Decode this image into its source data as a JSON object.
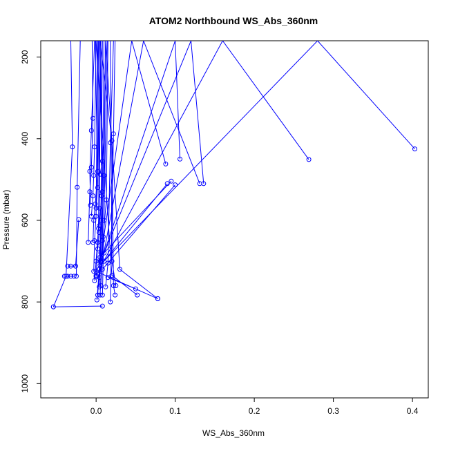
{
  "chart_data": {
    "type": "line",
    "title": "ATOM2 Northbound WS_Abs_360nm",
    "xlabel": "WS_Abs_360nm",
    "ylabel": "Pressure (mbar)",
    "xlim": [
      -0.07,
      0.42
    ],
    "ylim": [
      1035,
      160
    ],
    "y_reversed": true,
    "x_ticks": [
      0.0,
      0.1,
      0.2,
      0.3,
      0.4
    ],
    "x_tick_labels": [
      "0.0",
      "0.1",
      "0.2",
      "0.3",
      "0.4"
    ],
    "y_ticks": [
      200,
      400,
      600,
      800,
      1000
    ],
    "y_tick_labels": [
      "200",
      "400",
      "600",
      "800",
      "1000"
    ],
    "grid": false,
    "marker": "open-circle",
    "color": "#0000ff",
    "series": [
      {
        "x": [
          -0.054,
          0.008
        ],
        "y": [
          812,
          810
        ]
      },
      {
        "x": [
          -0.054,
          -0.038,
          -0.03,
          -0.032
        ],
        "y": [
          812,
          737,
          420,
          160
        ]
      },
      {
        "x": [
          -0.04,
          -0.036,
          -0.032,
          -0.028
        ],
        "y": [
          737,
          737,
          737,
          737
        ]
      },
      {
        "x": [
          -0.036,
          -0.032,
          -0.026
        ],
        "y": [
          712,
          712,
          712
        ]
      },
      {
        "x": [
          -0.025,
          -0.024,
          -0.02
        ],
        "y": [
          737,
          519,
          160
        ]
      },
      {
        "x": [
          -0.022,
          -0.026
        ],
        "y": [
          598,
          712
        ]
      },
      {
        "x": [
          -0.01,
          -0.008,
          -0.006,
          -0.004,
          -0.005
        ],
        "y": [
          654,
          530,
          470,
          350,
          160
        ]
      },
      {
        "x": [
          -0.007,
          -0.008,
          -0.006,
          -0.002
        ],
        "y": [
          563,
          480,
          380,
          160
        ]
      },
      {
        "x": [
          -0.006,
          -0.004,
          -0.003,
          -0.002,
          0.0
        ],
        "y": [
          590,
          540,
          490,
          420,
          160
        ]
      },
      {
        "x": [
          -0.004,
          -0.003,
          -0.001,
          0.002,
          0.003
        ],
        "y": [
          654,
          600,
          560,
          480,
          160
        ]
      },
      {
        "x": [
          -0.003,
          -0.002,
          0.0,
          0.002
        ],
        "y": [
          725,
          650,
          590,
          160
        ]
      },
      {
        "x": [
          -0.002,
          0.0,
          0.003,
          0.005
        ],
        "y": [
          748,
          700,
          620,
          160
        ]
      },
      {
        "x": [
          0.0,
          0.002,
          0.004,
          0.006
        ],
        "y": [
          738,
          654,
          570,
          160
        ]
      },
      {
        "x": [
          0.001,
          0.004,
          0.006,
          0.008
        ],
        "y": [
          795,
          720,
          600,
          160
        ]
      },
      {
        "x": [
          0.002,
          0.005,
          0.008,
          0.01
        ],
        "y": [
          783,
          700,
          530,
          160
        ]
      },
      {
        "x": [
          0.004,
          0.006,
          0.01,
          0.012
        ],
        "y": [
          763,
          680,
          490,
          160
        ]
      },
      {
        "x": [
          0.005,
          0.008,
          0.012
        ],
        "y": [
          783,
          650,
          160
        ]
      },
      {
        "x": [
          0.006,
          0.009,
          0.013,
          0.015
        ],
        "y": [
          760,
          640,
          550,
          160
        ]
      },
      {
        "x": [
          0.008,
          0.01,
          0.014
        ],
        "y": [
          783,
          600,
          160
        ]
      },
      {
        "x": [
          0.012,
          0.015,
          0.018,
          0.022
        ],
        "y": [
          763,
          705,
          410,
          160
        ]
      },
      {
        "x": [
          0.018,
          0.022,
          0.024
        ],
        "y": [
          800,
          388,
          160
        ]
      },
      {
        "x": [
          0.024,
          0.022,
          0.02,
          0.005
        ],
        "y": [
          783,
          760,
          405,
          160
        ]
      },
      {
        "x": [
          0.025,
          0.02,
          0.018
        ],
        "y": [
          760,
          700,
          160
        ]
      },
      {
        "x": [
          0.052,
          0.02,
          0.0
        ],
        "y": [
          783,
          735,
          160
        ]
      },
      {
        "x": [
          0.078,
          0.0
        ],
        "y": [
          792,
          725
        ]
      },
      {
        "x": [
          0.078,
          0.03,
          0.012
        ],
        "y": [
          792,
          720,
          160
        ]
      },
      {
        "x": [
          0.05,
          0.015
        ],
        "y": [
          768,
          740
        ]
      },
      {
        "x": [
          0.088,
          0.045,
          0.004
        ],
        "y": [
          462,
          160,
          720
        ]
      },
      {
        "x": [
          0.09,
          0.01
        ],
        "y": [
          510,
          700
        ]
      },
      {
        "x": [
          0.095,
          0.005
        ],
        "y": [
          504,
          690
        ]
      },
      {
        "x": [
          0.1,
          0.008
        ],
        "y": [
          513,
          720
        ]
      },
      {
        "x": [
          0.106,
          0.1,
          0.01
        ],
        "y": [
          450,
          160,
          680
        ]
      },
      {
        "x": [
          0.131,
          0.06,
          0.004
        ],
        "y": [
          510,
          160,
          740
        ]
      },
      {
        "x": [
          0.136,
          0.12,
          0.006
        ],
        "y": [
          510,
          160,
          700
        ]
      },
      {
        "x": [
          0.269,
          0.16,
          0.0
        ],
        "y": [
          451,
          160,
          735
        ]
      },
      {
        "x": [
          0.403,
          0.28,
          0.005
        ],
        "y": [
          425,
          160,
          710
        ]
      },
      {
        "x": [
          0.005,
          0.008,
          0.004
        ],
        "y": [
          487,
          455,
          160
        ]
      },
      {
        "x": [
          0.0,
          0.002,
          -0.001
        ],
        "y": [
          570,
          520,
          160
        ]
      },
      {
        "x": [
          0.004,
          0.007,
          0.006
        ],
        "y": [
          613,
          540,
          160
        ]
      },
      {
        "x": [
          0.002,
          0.004,
          0.002
        ],
        "y": [
          670,
          630,
          160
        ]
      }
    ]
  }
}
